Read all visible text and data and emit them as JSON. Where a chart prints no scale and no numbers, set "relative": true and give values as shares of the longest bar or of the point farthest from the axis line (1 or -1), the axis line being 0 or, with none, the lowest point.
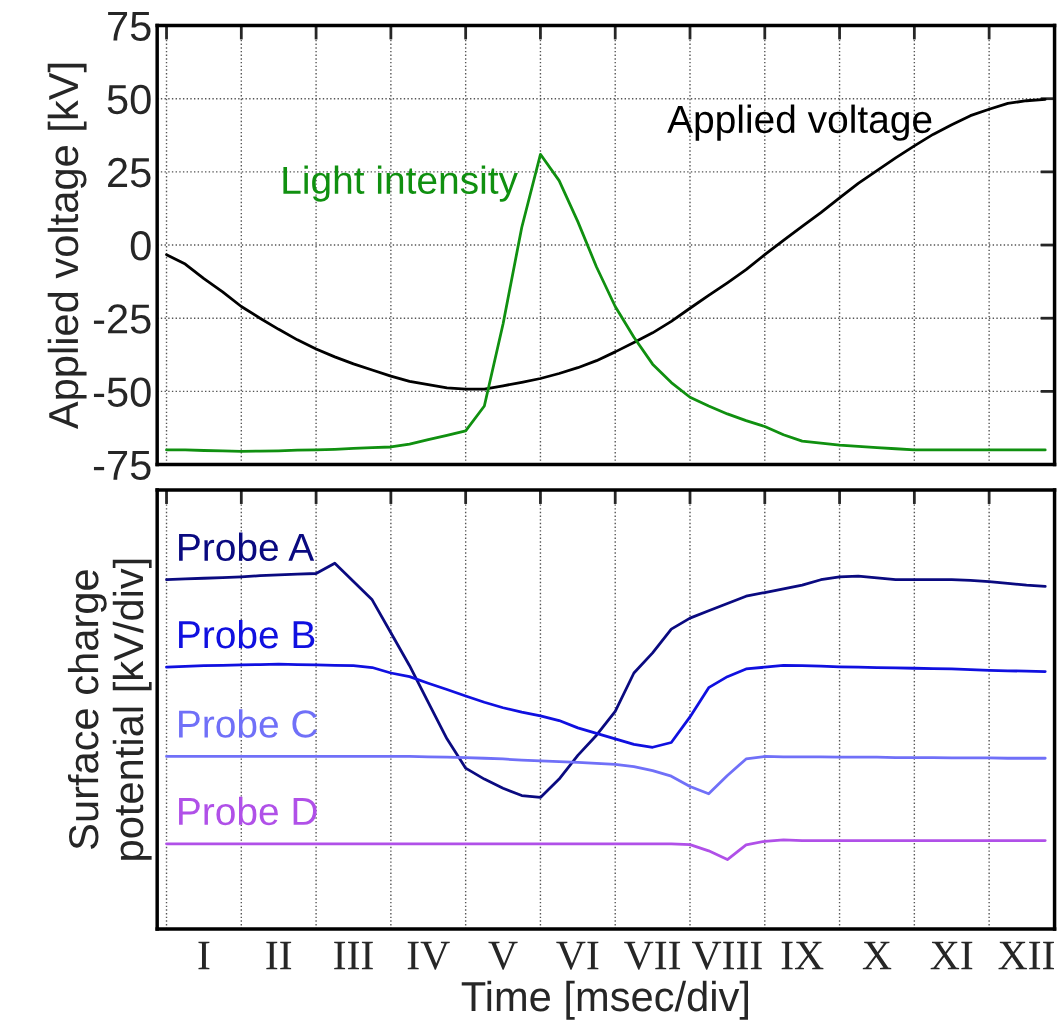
{
  "chart_data": [
    {
      "type": "line",
      "ylabel": "Applied voltage [kV]",
      "categories": [
        null,
        null,
        null,
        null,
        null,
        null,
        null,
        null,
        null,
        null,
        null,
        null,
        null,
        null,
        null,
        null,
        null,
        null,
        null,
        null,
        null,
        null,
        null,
        null,
        null,
        null,
        null,
        null,
        null,
        null,
        null,
        null,
        null,
        null,
        null,
        null,
        null,
        null,
        null,
        null,
        null,
        null,
        null,
        null,
        null,
        null,
        null,
        null
      ],
      "ylim": [
        -75,
        75
      ],
      "yticks": [
        {
          "value": -75,
          "label": "-75"
        },
        {
          "value": -50,
          "label": "-50"
        },
        {
          "value": -25,
          "label": "-25"
        },
        0,
        25,
        50,
        75
      ],
      "grid": true,
      "tick_labels": "y",
      "series": [
        {
          "name": "Applied voltage",
          "color": "#000000",
          "values": [
            -3.3,
            -6.5,
            -11.5,
            -16,
            -21,
            -25,
            -28.8,
            -32.4,
            -35.5,
            -38.2,
            -40.6,
            -42.7,
            -44.8,
            -46.6,
            -47.7,
            -48.8,
            -49.2,
            -49.2,
            -48.1,
            -46.9,
            -45.6,
            -43.9,
            -41.9,
            -39.5,
            -36.5,
            -33.3,
            -30,
            -26.1,
            -21.6,
            -17.2,
            -12.9,
            -8.4,
            -3.3,
            1.6,
            6.4,
            11.1,
            16.1,
            21.1,
            25.4,
            29.8,
            33.9,
            37.8,
            41.1,
            44.2,
            46.4,
            48.4,
            49.3,
            49.8
          ]
        },
        {
          "name": "Light intensity",
          "color": "#109010",
          "values": [
            -70,
            -70,
            -70.2,
            -70.3,
            -70.5,
            -70.4,
            -70.3,
            -70.1,
            -70,
            -69.8,
            -69.5,
            -69.2,
            -69,
            -68,
            -66.5,
            -65,
            -63.5,
            -55,
            -27,
            6,
            31,
            22,
            8,
            -7.5,
            -21,
            -31.5,
            -40.7,
            -47,
            -52,
            -55,
            -57.7,
            -60,
            -62,
            -64.8,
            -67,
            -67.7,
            -68.4,
            -68.8,
            -69.2,
            -69.6,
            -70,
            -70,
            -70,
            -70,
            -70,
            -70,
            -70,
            -70
          ]
        }
      ]
    },
    {
      "type": "line",
      "xlabel": "Time [msec/div]",
      "ylabel": "Surface charge\npotential [kV/div]",
      "relative": true,
      "categories": [
        null,
        null,
        "I",
        null,
        null,
        null,
        "II",
        null,
        null,
        null,
        "III",
        null,
        null,
        null,
        "IV",
        null,
        null,
        null,
        "V",
        null,
        null,
        null,
        "VI",
        null,
        null,
        null,
        "VII",
        null,
        null,
        null,
        "VIII",
        null,
        null,
        null,
        "IX",
        null,
        null,
        null,
        "X",
        null,
        null,
        null,
        "XI",
        null,
        null,
        null,
        "XII",
        null
      ],
      "grid": "x",
      "tick_labels": "x",
      "series": [
        {
          "name": "Probe A",
          "color": "#0a0a80",
          "values": [
            0.955,
            0.957,
            0.959,
            0.961,
            0.963,
            0.966,
            0.968,
            0.97,
            0.972,
            1,
            0.95,
            0.9,
            0.81,
            0.72,
            0.62,
            0.52,
            0.44,
            0.41,
            0.385,
            0.365,
            0.36,
            0.41,
            0.475,
            0.53,
            0.595,
            0.7,
            0.755,
            0.82,
            0.85,
            0.87,
            0.89,
            0.91,
            0.92,
            0.93,
            0.94,
            0.955,
            0.963,
            0.965,
            0.96,
            0.955,
            0.955,
            0.955,
            0.955,
            0.953,
            0.95,
            0.945,
            0.94,
            0.937
          ]
        },
        {
          "name": "Probe B",
          "color": "#1010e0",
          "values": [
            0.716,
            0.718,
            0.72,
            0.721,
            0.722,
            0.723,
            0.724,
            0.723,
            0.722,
            0.721,
            0.72,
            0.715,
            0.7,
            0.69,
            0.672,
            0.655,
            0.637,
            0.62,
            0.605,
            0.593,
            0.583,
            0.57,
            0.55,
            0.535,
            0.52,
            0.505,
            0.497,
            0.51,
            0.58,
            0.66,
            0.69,
            0.711,
            0.716,
            0.721,
            0.72,
            0.719,
            0.717,
            0.716,
            0.715,
            0.714,
            0.713,
            0.712,
            0.711,
            0.709,
            0.707,
            0.706,
            0.705,
            0.704
          ]
        },
        {
          "name": "Probe C",
          "color": "#7070f8",
          "values": [
            0.472,
            0.472,
            0.472,
            0.472,
            0.472,
            0.472,
            0.472,
            0.472,
            0.472,
            0.472,
            0.472,
            0.472,
            0.472,
            0.472,
            0.471,
            0.47,
            0.469,
            0.467,
            0.465,
            0.462,
            0.46,
            0.458,
            0.456,
            0.453,
            0.45,
            0.444,
            0.433,
            0.418,
            0.39,
            0.37,
            0.42,
            0.465,
            0.472,
            0.471,
            0.471,
            0.471,
            0.47,
            0.47,
            0.47,
            0.469,
            0.469,
            0.469,
            0.468,
            0.468,
            0.468,
            0.467,
            0.467,
            0.467
          ]
        },
        {
          "name": "Probe D",
          "color": "#b050e8",
          "values": [
            0.233,
            0.233,
            0.233,
            0.233,
            0.233,
            0.233,
            0.233,
            0.233,
            0.233,
            0.233,
            0.233,
            0.233,
            0.233,
            0.233,
            0.233,
            0.233,
            0.233,
            0.233,
            0.233,
            0.233,
            0.233,
            0.233,
            0.233,
            0.233,
            0.233,
            0.233,
            0.233,
            0.233,
            0.231,
            0.214,
            0.19,
            0.23,
            0.24,
            0.244,
            0.242,
            0.242,
            0.242,
            0.242,
            0.242,
            0.242,
            0.242,
            0.242,
            0.242,
            0.242,
            0.242,
            0.242,
            0.242,
            0.242
          ]
        }
      ]
    }
  ]
}
